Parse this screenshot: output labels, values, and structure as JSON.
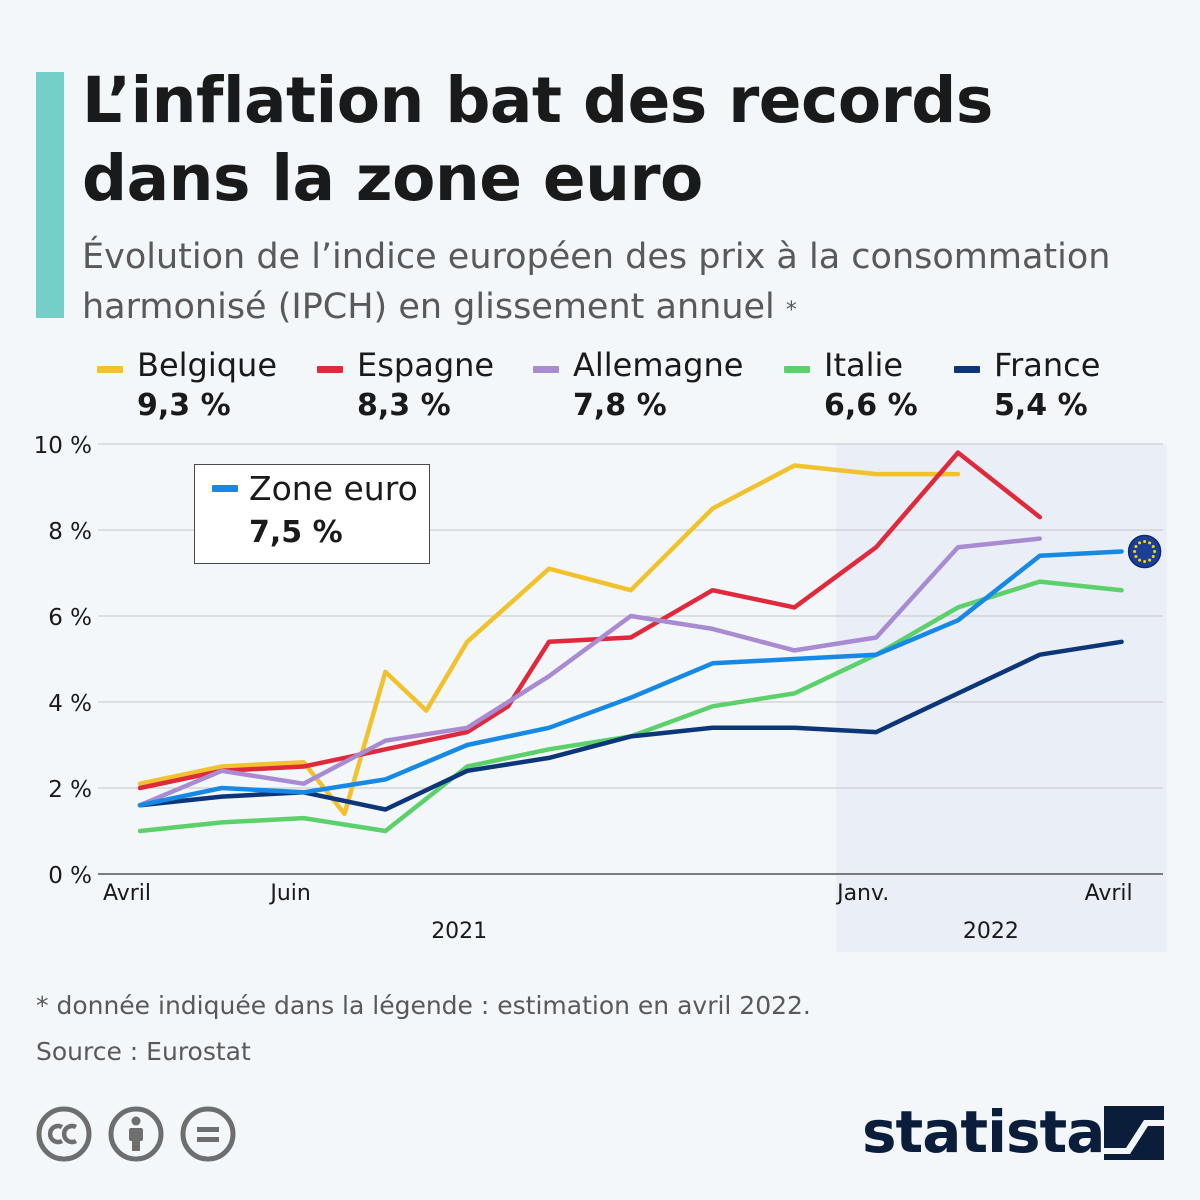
{
  "header": {
    "title": "L’inflation bat des records dans la zone euro",
    "subtitle": "Évolution de l’indice européen des prix à la consommation harmonisé (IPCH) en glissement annuel",
    "subtitle_mark": "*"
  },
  "legend": [
    {
      "name": "Belgique",
      "value": "9,3 %",
      "color": "#f2c12e"
    },
    {
      "name": "Espagne",
      "value": "8,3 %",
      "color": "#df2a3c"
    },
    {
      "name": "Allemagne",
      "value": "7,8 %",
      "color": "#a98bd1"
    },
    {
      "name": "Italie",
      "value": "6,6 %",
      "color": "#5cd16b"
    },
    {
      "name": "France",
      "value": "5,4 %",
      "color": "#0d3679"
    }
  ],
  "euro_legend": {
    "name": "Zone euro",
    "value": "7,5 %",
    "color": "#1689e6"
  },
  "chart_data": {
    "type": "line",
    "title": "L’inflation bat des records dans la zone euro",
    "ylabel": "",
    "ylim": [
      0,
      10
    ],
    "yticks": [
      0,
      2,
      4,
      6,
      8,
      10
    ],
    "ytick_labels": [
      "0 %",
      "2 %",
      "4 %",
      "6 %",
      "8 %",
      "10 %"
    ],
    "x": [
      "2021-04",
      "2021-05",
      "2021-06",
      "2021-07",
      "2021-08",
      "2021-09",
      "2021-10",
      "2021-11",
      "2021-12",
      "2022-01",
      "2022-02",
      "2022-03",
      "2022-04"
    ],
    "xtick_labels": [
      {
        "index": 0,
        "label": "Avril"
      },
      {
        "index": 2,
        "label": "Juin"
      },
      {
        "index": 9,
        "label": "Janv."
      },
      {
        "index": 12,
        "label": "Avril"
      }
    ],
    "year_labels": [
      {
        "label": "2021",
        "center_index": 4
      },
      {
        "label": "2022",
        "center_index": 10.5
      }
    ],
    "highlight_range": [
      8.5,
      12.5
    ],
    "grid": true,
    "series": [
      {
        "name": "Belgique",
        "color": "#f2c12e",
        "points": [
          [
            0,
            2.1
          ],
          [
            1,
            2.5
          ],
          [
            2,
            2.6
          ],
          [
            2.5,
            1.4
          ],
          [
            3,
            4.7
          ],
          [
            3.5,
            3.8
          ],
          [
            4,
            5.4
          ],
          [
            5,
            7.1
          ],
          [
            6,
            6.6
          ],
          [
            7,
            8.5
          ],
          [
            8,
            9.5
          ],
          [
            9,
            9.3
          ],
          [
            10,
            9.3
          ]
        ]
      },
      {
        "name": "Espagne",
        "color": "#df2a3c",
        "points": [
          [
            0,
            2.0
          ],
          [
            1,
            2.4
          ],
          [
            2,
            2.5
          ],
          [
            3,
            2.9
          ],
          [
            4,
            3.3
          ],
          [
            4.5,
            3.9
          ],
          [
            5,
            5.4
          ],
          [
            6,
            5.5
          ],
          [
            7,
            6.6
          ],
          [
            8,
            6.2
          ],
          [
            9,
            7.6
          ],
          [
            10,
            9.8
          ],
          [
            11,
            8.3
          ]
        ]
      },
      {
        "name": "Allemagne",
        "color": "#a98bd1",
        "points": [
          [
            0,
            1.6
          ],
          [
            1,
            2.4
          ],
          [
            2,
            2.1
          ],
          [
            3,
            3.1
          ],
          [
            4,
            3.4
          ],
          [
            4.5,
            4.0
          ],
          [
            5,
            4.6
          ],
          [
            6,
            6.0
          ],
          [
            7,
            5.7
          ],
          [
            8,
            5.2
          ],
          [
            9,
            5.5
          ],
          [
            10,
            7.6
          ],
          [
            11,
            7.8
          ]
        ]
      },
      {
        "name": "Italie",
        "color": "#5cd16b",
        "points": [
          [
            0,
            1.0
          ],
          [
            1,
            1.2
          ],
          [
            2,
            1.3
          ],
          [
            3,
            1.0
          ],
          [
            4,
            2.5
          ],
          [
            5,
            2.9
          ],
          [
            6,
            3.2
          ],
          [
            7,
            3.9
          ],
          [
            8,
            4.2
          ],
          [
            9,
            5.1
          ],
          [
            10,
            6.2
          ],
          [
            11,
            6.8
          ],
          [
            12,
            6.6
          ]
        ]
      },
      {
        "name": "France",
        "color": "#0d3679",
        "points": [
          [
            0,
            1.6
          ],
          [
            1,
            1.8
          ],
          [
            2,
            1.9
          ],
          [
            3,
            1.5
          ],
          [
            4,
            2.4
          ],
          [
            5,
            2.7
          ],
          [
            6,
            3.2
          ],
          [
            7,
            3.4
          ],
          [
            8,
            3.4
          ],
          [
            9,
            3.3
          ],
          [
            10,
            4.2
          ],
          [
            11,
            5.1
          ],
          [
            12,
            5.4
          ]
        ]
      },
      {
        "name": "Zone euro",
        "color": "#1689e6",
        "points": [
          [
            0,
            1.6
          ],
          [
            1,
            2.0
          ],
          [
            2,
            1.9
          ],
          [
            3,
            2.2
          ],
          [
            4,
            3.0
          ],
          [
            5,
            3.4
          ],
          [
            6,
            4.1
          ],
          [
            7,
            4.9
          ],
          [
            8,
            5.0
          ],
          [
            9,
            5.1
          ],
          [
            10,
            5.9
          ],
          [
            11,
            7.4
          ],
          [
            12,
            7.5
          ]
        ]
      }
    ]
  },
  "footer": {
    "footnote": "* donnée indiquée dans la légende : estimation en avril 2022.",
    "source": "Source : Eurostat",
    "brand": "statista"
  }
}
